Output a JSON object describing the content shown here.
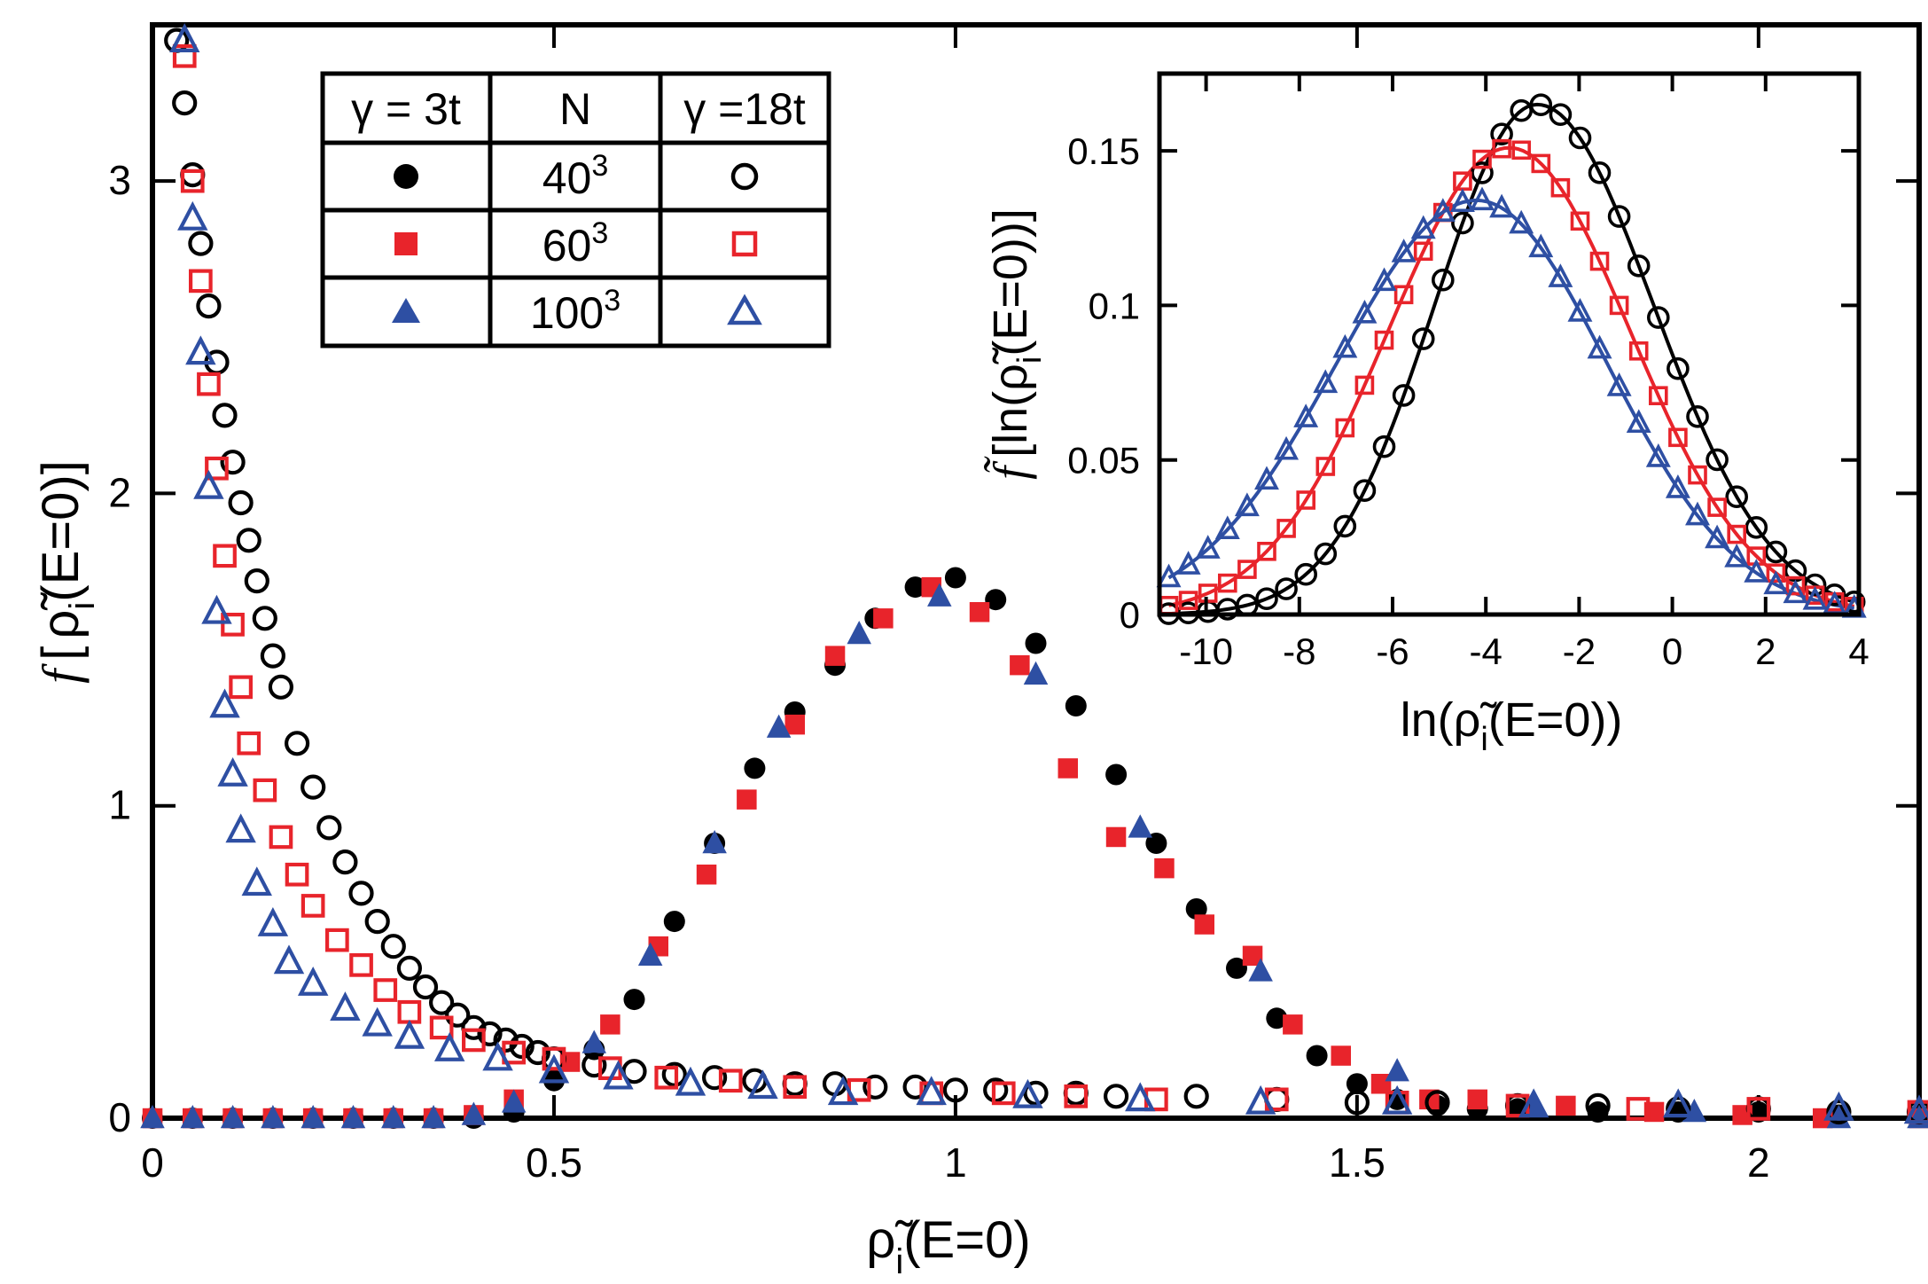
{
  "chart_data": [
    {
      "type": "scatter",
      "panel": "main",
      "xlabel": "ρ̃ᵢ(E=0)",
      "xlabel_parts": {
        "rho": "ρ̃",
        "sub": "i",
        "rest": "(E=0)"
      },
      "ylabel": "f [ ρ̃ᵢ(E=0)]",
      "ylabel_parts": {
        "f": "f",
        "open": "[",
        "rho": "ρ̃",
        "sub": "i",
        "rest": "(E=0)]"
      },
      "xlim": [
        0,
        2.2
      ],
      "ylim": [
        0,
        3.5
      ],
      "xticks": [
        {
          "v": 0,
          "label": "0"
        },
        {
          "v": 0.5,
          "label": "0.5"
        },
        {
          "v": 1,
          "label": "1"
        },
        {
          "v": 1.5,
          "label": "1.5"
        },
        {
          "v": 2,
          "label": "2"
        }
      ],
      "yticks": [
        {
          "v": 0,
          "label": "0"
        },
        {
          "v": 1,
          "label": "1"
        },
        {
          "v": 2,
          "label": "2"
        },
        {
          "v": 3,
          "label": "3"
        }
      ],
      "series": [
        {
          "name": "γ = 3t, N = 40³",
          "marker": "circle",
          "fill": "filled",
          "color": "#000000",
          "x": [
            0.0,
            0.05,
            0.1,
            0.15,
            0.2,
            0.25,
            0.3,
            0.35,
            0.4,
            0.45,
            0.5,
            0.55,
            0.6,
            0.65,
            0.7,
            0.75,
            0.8,
            0.85,
            0.9,
            0.95,
            1.0,
            1.05,
            1.1,
            1.15,
            1.2,
            1.25,
            1.3,
            1.35,
            1.4,
            1.45,
            1.5,
            1.55,
            1.6,
            1.65,
            1.7,
            1.8,
            1.9,
            2.0,
            2.1,
            2.2
          ],
          "y": [
            0.0,
            0.0,
            0.0,
            0.0,
            0.0,
            0.0,
            0.0,
            0.0,
            0.0,
            0.02,
            0.12,
            0.22,
            0.38,
            0.63,
            0.88,
            1.12,
            1.3,
            1.45,
            1.6,
            1.7,
            1.73,
            1.66,
            1.52,
            1.32,
            1.1,
            0.88,
            0.67,
            0.48,
            0.32,
            0.2,
            0.11,
            0.06,
            0.04,
            0.03,
            0.03,
            0.02,
            0.02,
            0.02,
            0.01,
            0.01
          ]
        },
        {
          "name": "γ = 3t, N = 60³",
          "marker": "square",
          "fill": "filled",
          "color": "#e8242b",
          "x": [
            0.0,
            0.05,
            0.1,
            0.15,
            0.2,
            0.25,
            0.3,
            0.35,
            0.4,
            0.45,
            0.52,
            0.57,
            0.63,
            0.69,
            0.74,
            0.8,
            0.85,
            0.91,
            0.97,
            1.03,
            1.08,
            1.14,
            1.2,
            1.26,
            1.31,
            1.37,
            1.42,
            1.48,
            1.53,
            1.59,
            1.65,
            1.76,
            1.87,
            1.98,
            2.08,
            2.2
          ],
          "y": [
            0.0,
            0.0,
            0.0,
            0.0,
            0.0,
            0.0,
            0.0,
            0.0,
            0.01,
            0.06,
            0.18,
            0.3,
            0.55,
            0.78,
            1.02,
            1.26,
            1.48,
            1.6,
            1.7,
            1.62,
            1.45,
            1.12,
            0.9,
            0.8,
            0.62,
            0.52,
            0.3,
            0.2,
            0.11,
            0.06,
            0.06,
            0.04,
            0.02,
            0.01,
            0.0,
            0.0
          ]
        },
        {
          "name": "γ = 3t, N = 100³",
          "marker": "triangle",
          "fill": "filled",
          "color": "#2e4fa3",
          "x": [
            0.0,
            0.05,
            0.1,
            0.15,
            0.2,
            0.25,
            0.3,
            0.35,
            0.4,
            0.45,
            0.55,
            0.62,
            0.7,
            0.78,
            0.88,
            0.98,
            1.1,
            1.23,
            1.38,
            1.55,
            1.72,
            1.92,
            2.1,
            2.2
          ],
          "y": [
            0.0,
            0.0,
            0.0,
            0.0,
            0.0,
            0.0,
            0.0,
            0.0,
            0.01,
            0.05,
            0.24,
            0.52,
            0.88,
            1.25,
            1.55,
            1.67,
            1.42,
            0.93,
            0.47,
            0.15,
            0.04,
            0.02,
            0.0,
            0.0
          ]
        },
        {
          "name": "γ = 18t, N = 40³",
          "marker": "circle",
          "fill": "open",
          "color": "#000000",
          "x": [
            0.03,
            0.04,
            0.05,
            0.06,
            0.07,
            0.08,
            0.09,
            0.1,
            0.11,
            0.12,
            0.13,
            0.14,
            0.15,
            0.16,
            0.18,
            0.2,
            0.22,
            0.24,
            0.26,
            0.28,
            0.3,
            0.32,
            0.34,
            0.36,
            0.38,
            0.4,
            0.42,
            0.44,
            0.46,
            0.48,
            0.5,
            0.55,
            0.6,
            0.65,
            0.7,
            0.75,
            0.8,
            0.85,
            0.9,
            0.95,
            1.0,
            1.05,
            1.1,
            1.15,
            1.2,
            1.3,
            1.4,
            1.5,
            1.6,
            1.7,
            1.8,
            1.9,
            2.0,
            2.1,
            2.2
          ],
          "y": [
            3.45,
            3.25,
            3.02,
            2.8,
            2.6,
            2.42,
            2.25,
            2.1,
            1.97,
            1.85,
            1.72,
            1.6,
            1.48,
            1.38,
            1.2,
            1.06,
            0.93,
            0.82,
            0.72,
            0.63,
            0.55,
            0.48,
            0.42,
            0.37,
            0.33,
            0.29,
            0.27,
            0.25,
            0.23,
            0.21,
            0.19,
            0.17,
            0.15,
            0.14,
            0.13,
            0.12,
            0.11,
            0.11,
            0.1,
            0.1,
            0.09,
            0.09,
            0.08,
            0.08,
            0.07,
            0.07,
            0.06,
            0.05,
            0.05,
            0.04,
            0.04,
            0.03,
            0.03,
            0.02,
            0.02
          ]
        },
        {
          "name": "γ = 18t, N = 60³",
          "marker": "square",
          "fill": "open",
          "color": "#e8242b",
          "x": [
            0.04,
            0.05,
            0.06,
            0.07,
            0.08,
            0.09,
            0.1,
            0.11,
            0.12,
            0.14,
            0.16,
            0.18,
            0.2,
            0.23,
            0.26,
            0.29,
            0.32,
            0.36,
            0.4,
            0.45,
            0.5,
            0.57,
            0.64,
            0.72,
            0.8,
            0.88,
            0.97,
            1.06,
            1.15,
            1.25,
            1.4,
            1.55,
            1.7,
            1.85,
            2.0,
            2.2
          ],
          "y": [
            3.4,
            3.0,
            2.68,
            2.35,
            2.08,
            1.8,
            1.58,
            1.38,
            1.2,
            1.05,
            0.9,
            0.78,
            0.68,
            0.57,
            0.49,
            0.41,
            0.34,
            0.29,
            0.25,
            0.21,
            0.19,
            0.16,
            0.13,
            0.12,
            0.1,
            0.09,
            0.08,
            0.08,
            0.07,
            0.06,
            0.06,
            0.05,
            0.04,
            0.03,
            0.03,
            0.02
          ]
        },
        {
          "name": "γ = 18t, N = 100³",
          "marker": "triangle",
          "fill": "open",
          "color": "#2e4fa3",
          "x": [
            0.04,
            0.05,
            0.06,
            0.07,
            0.08,
            0.09,
            0.1,
            0.11,
            0.13,
            0.15,
            0.17,
            0.2,
            0.24,
            0.28,
            0.32,
            0.37,
            0.43,
            0.5,
            0.58,
            0.67,
            0.76,
            0.86,
            0.97,
            1.09,
            1.23,
            1.38,
            1.55,
            1.72,
            1.9,
            2.1,
            2.2
          ],
          "y": [
            3.45,
            2.88,
            2.45,
            2.02,
            1.62,
            1.32,
            1.1,
            0.92,
            0.75,
            0.62,
            0.5,
            0.43,
            0.35,
            0.3,
            0.26,
            0.22,
            0.19,
            0.15,
            0.13,
            0.11,
            0.1,
            0.08,
            0.08,
            0.07,
            0.06,
            0.05,
            0.05,
            0.04,
            0.04,
            0.03,
            0.02
          ]
        }
      ],
      "legend": {
        "placement": "top-left",
        "headers": {
          "left": "γ = 3t",
          "middle": "N",
          "right": "γ =18t"
        },
        "rows": [
          {
            "n_base": "40",
            "n_exp": "3"
          },
          {
            "n_base": "60",
            "n_exp": "3"
          },
          {
            "n_base": "100",
            "n_exp": "3"
          }
        ]
      }
    },
    {
      "type": "line",
      "panel": "inset",
      "placement": "top-right",
      "xlabel": "ln(ρ̃ᵢ(E=0))",
      "xlabel_parts": {
        "pre": "ln(",
        "rho": "ρ̃",
        "sub": "i",
        "rest": "(E=0))"
      },
      "ylabel": "f̃ [ln(ρ̃ᵢ(E=0))]",
      "ylabel_parts": {
        "f": "f̃",
        "open": "[ln(",
        "rho": "ρ̃",
        "sub": "i",
        "rest": "(E=0))]"
      },
      "xlim": [
        -11,
        4
      ],
      "ylim": [
        0,
        0.175
      ],
      "xticks": [
        {
          "v": -10,
          "label": "-10"
        },
        {
          "v": -8,
          "label": "-8"
        },
        {
          "v": -6,
          "label": "-6"
        },
        {
          "v": -4,
          "label": "-4"
        },
        {
          "v": -2,
          "label": "-2"
        },
        {
          "v": 0,
          "label": "0"
        },
        {
          "v": 2,
          "label": "2"
        },
        {
          "v": 4,
          "label": "4"
        }
      ],
      "yticks": [
        {
          "v": 0,
          "label": "0"
        },
        {
          "v": 0.05,
          "label": "0.05"
        },
        {
          "v": 0.1,
          "label": "0.1"
        },
        {
          "v": 0.15,
          "label": "0.15"
        }
      ],
      "series": [
        {
          "name": "N = 40³",
          "marker": "circle",
          "fill": "open",
          "color": "#000000",
          "line": true,
          "peak_x": -2.9,
          "peak_y": 0.165,
          "sigma_left": 2.2,
          "sigma_right": 2.5
        },
        {
          "name": "N = 60³",
          "marker": "square",
          "fill": "open",
          "color": "#e8242b",
          "line": true,
          "peak_x": -3.5,
          "peak_y": 0.151,
          "sigma_left": 2.6,
          "sigma_right": 2.6
        },
        {
          "name": "N = 100³",
          "marker": "triangle",
          "fill": "open",
          "color": "#2e4fa3",
          "line": true,
          "peak_x": -4.2,
          "peak_y": 0.134,
          "sigma_left": 3.0,
          "sigma_right": 2.8
        }
      ]
    }
  ]
}
